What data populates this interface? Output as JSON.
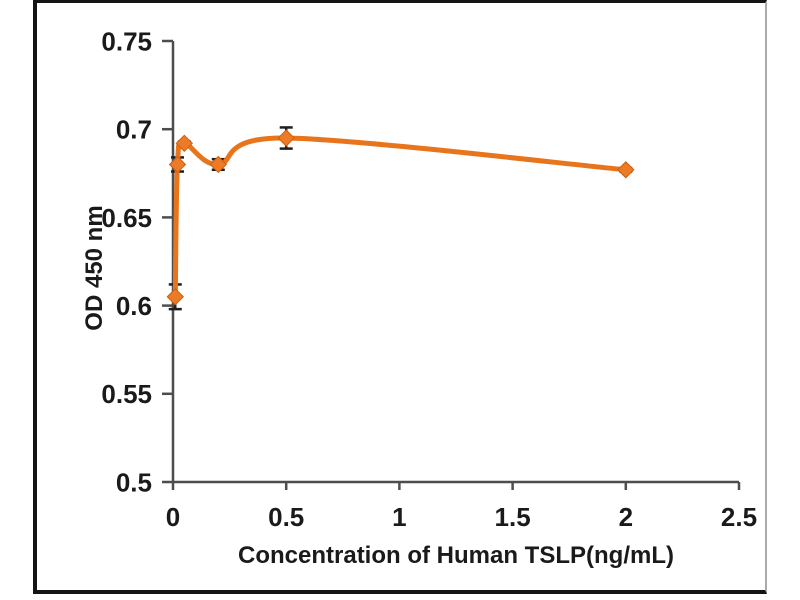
{
  "frame": {
    "border_color": "#141414",
    "right_edge_color": "#ababab",
    "background": "#ffffff"
  },
  "chart_data": {
    "type": "line",
    "title": "",
    "xlabel": "Concentration of Human TSLP(ng/mL)",
    "ylabel": "OD 450 nm",
    "xlim": [
      0,
      2.5
    ],
    "ylim": [
      0.5,
      0.75
    ],
    "x_ticks": [
      0,
      0.5,
      1,
      1.5,
      2,
      2.5
    ],
    "x_tick_labels": [
      "0",
      "0.5",
      "1",
      "1.5",
      "2",
      "2.5"
    ],
    "y_ticks": [
      0.5,
      0.55,
      0.6,
      0.65,
      0.7,
      0.75
    ],
    "y_tick_labels": [
      "0.5",
      "0.55",
      "0.6",
      "0.65",
      "0.7",
      "0.75"
    ],
    "grid": false,
    "legend": false,
    "series": [
      {
        "x": [
          0.01,
          0.02,
          0.05,
          0.2,
          0.5,
          2
        ],
        "y": [
          0.605,
          0.68,
          0.692,
          0.68,
          0.695,
          0.677
        ],
        "yerr": [
          0.007,
          0.004,
          0.001,
          0.003,
          0.006,
          0.001
        ],
        "marker": "diamond",
        "smooth": true
      }
    ],
    "colors": {
      "line": "#e8741c",
      "marker_fill": "#ed7a24",
      "marker_stroke": "#cd600d",
      "error_bar": "#1f1f1f",
      "axis": "#4d4d4d",
      "text": "#1a1a1a"
    }
  }
}
